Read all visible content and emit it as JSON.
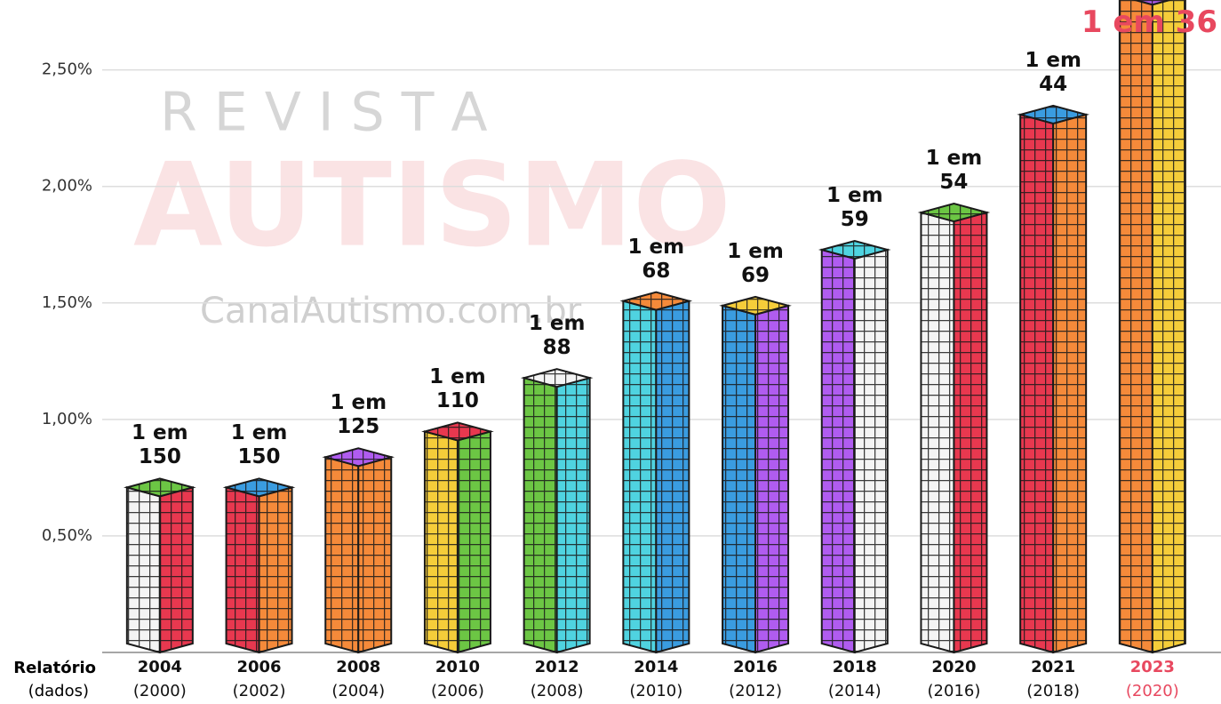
{
  "chart_data": {
    "type": "bar",
    "categories": [
      "2004",
      "2006",
      "2008",
      "2010",
      "2012",
      "2014",
      "2016",
      "2018",
      "2020",
      "2021",
      "2023"
    ],
    "data_years": [
      "(2000)",
      "(2002)",
      "(2004)",
      "(2006)",
      "(2008)",
      "(2010)",
      "(2012)",
      "(2014)",
      "(2016)",
      "(2018)",
      "(2020)"
    ],
    "row_labels": [
      "Relatório",
      "(dados)"
    ],
    "values": [
      0.67,
      0.67,
      0.8,
      0.91,
      1.14,
      1.47,
      1.45,
      1.69,
      1.85,
      2.27,
      2.78
    ],
    "value_labels": [
      "1 em 150",
      "1 em 150",
      "1 em 125",
      "1 em 110",
      "1 em 88",
      "1 em 68",
      "1 em 69",
      "1 em 59",
      "1 em 54",
      "1 em 44",
      "1 em 36"
    ],
    "left_colors": [
      "#f4f4f4",
      "#e8384f",
      "#f58a3a",
      "#f5cd3a",
      "#6cc644",
      "#4fd3e0",
      "#3a9ce0",
      "#b05cf0",
      "#f4f4f4",
      "#e8384f",
      "#f58a3a"
    ],
    "right_colors": [
      "#e8384f",
      "#f58a3a",
      "#f58a3a",
      "#6cc644",
      "#4fd3e0",
      "#3a9ce0",
      "#b05cf0",
      "#f4f4f4",
      "#e8384f",
      "#f58a3a",
      "#f5cd3a"
    ],
    "top_colors": [
      "#6cc644",
      "#3a9ce0",
      "#b05cf0",
      "#e8384f",
      "#f4f4f4",
      "#f58a3a",
      "#f5cd3a",
      "#4fd3e0",
      "#6cc644",
      "#3a9ce0",
      "#b05cf0"
    ],
    "label_colors": [
      "#111111",
      "#111111",
      "#111111",
      "#111111",
      "#111111",
      "#111111",
      "#111111",
      "#111111",
      "#111111",
      "#111111",
      "#e8485f"
    ],
    "ylim": [
      0,
      2.8
    ],
    "yticks": [
      {
        "value": 0.5,
        "label": "0,50%"
      },
      {
        "value": 1,
        "label": "1,00%"
      },
      {
        "value": 1.5,
        "label": "1,50%"
      },
      {
        "value": 2,
        "label": "2,00%"
      },
      {
        "value": 2.5,
        "label": "2,50%"
      }
    ],
    "grid": true,
    "watermark": {
      "top": "R E V I S T A",
      "main": "AUTISMO",
      "site": "CanalAutismo.com.br"
    }
  }
}
